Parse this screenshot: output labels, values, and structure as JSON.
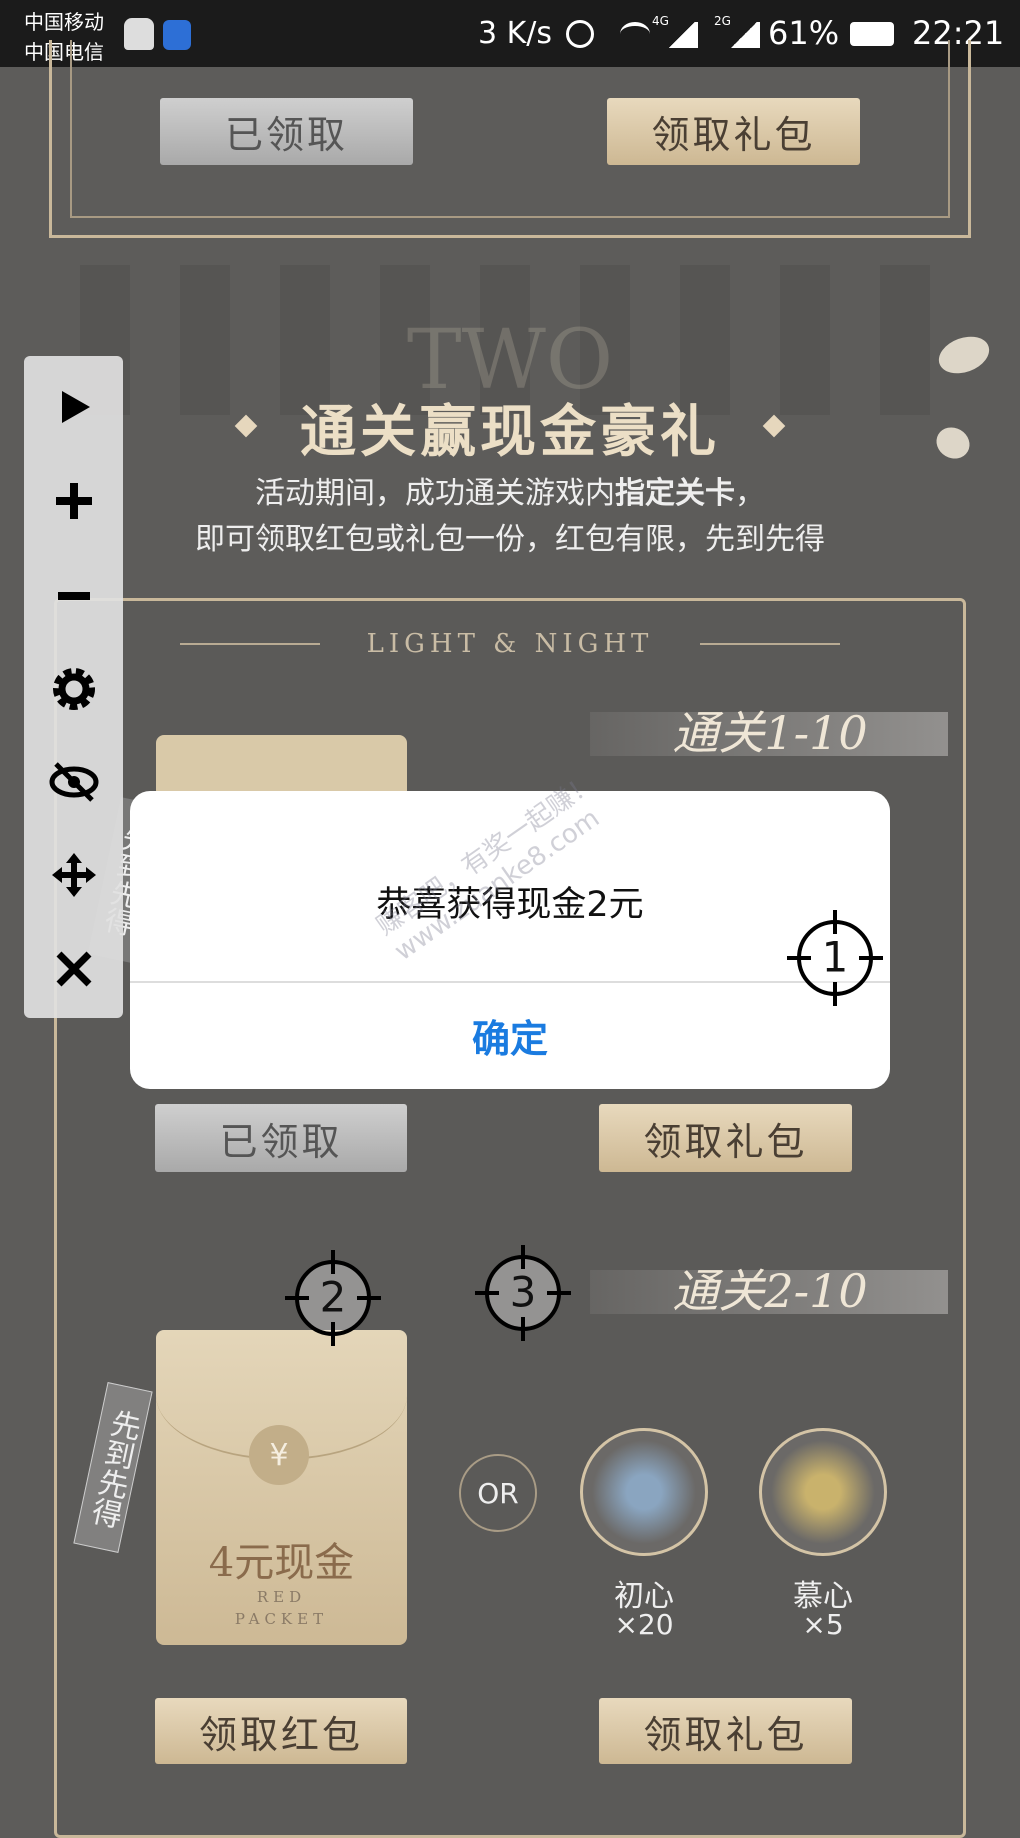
{
  "status_bar": {
    "carrier_1": "中国移动",
    "carrier_2": "中国电信",
    "speed": "3 K/s",
    "net_1": "4G",
    "net_2": "2G",
    "battery": "61%",
    "time": "22:21"
  },
  "top_card": {
    "claimed": "已领取",
    "claim_gift": "领取礼包"
  },
  "section": {
    "bg_label": "TWO",
    "title": "通关赢现金豪礼",
    "desc_1a": "活动期间，成功通关游戏内",
    "desc_1b": "指定关卡",
    "desc_1c": "，",
    "desc_2": "即可领取红包或礼包一份，红包有限，先到先得"
  },
  "card": {
    "subtitle": "LIGHT & NIGHT",
    "level_1": {
      "label": "通关1-10",
      "tag": "先到先得",
      "claimed": "已领取",
      "claim_gift": "领取礼包"
    },
    "level_2": {
      "label": "通关2-10",
      "tag": "先到先得",
      "cash": "4元现金",
      "red": "RED",
      "packet": "PACKET",
      "currency": "¥",
      "or": "OR",
      "item_1": "初心",
      "item_1_count": "×20",
      "item_2": "慕心",
      "item_2_count": "×5",
      "claim_packet": "领取红包",
      "claim_gift": "领取礼包"
    }
  },
  "dialog": {
    "message": "恭喜获得现金2元",
    "confirm": "确定"
  },
  "watermark": {
    "line_1": "赚客吧，有奖一起赚！",
    "line_2": "www.zuanke8.com"
  },
  "markers": [
    "1",
    "2",
    "3"
  ]
}
